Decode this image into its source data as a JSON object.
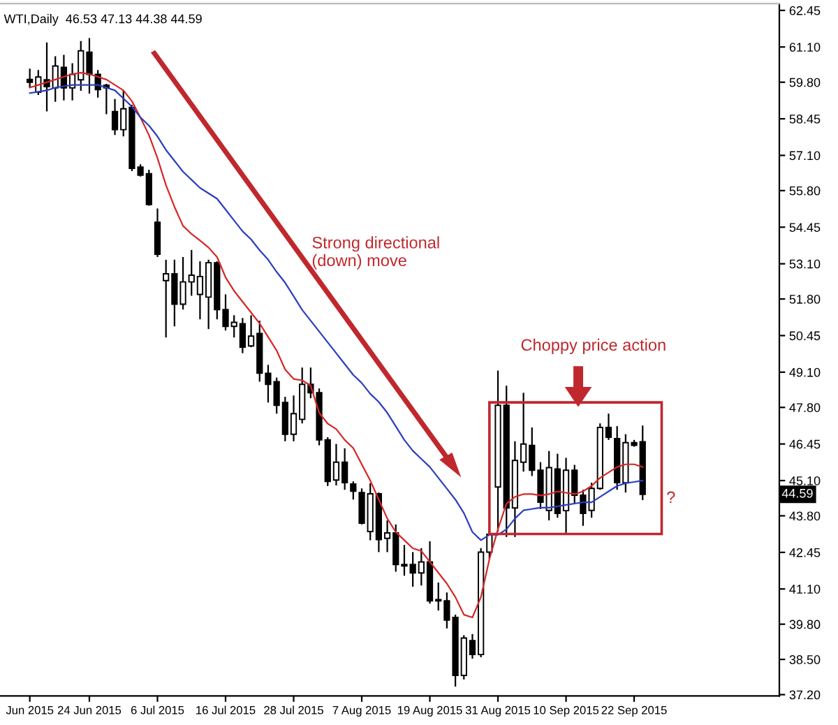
{
  "chart_data": {
    "type": "candlestick",
    "categories": [
      "Jun 2015",
      null,
      null,
      null,
      null,
      null,
      null,
      "24 Jun 2015",
      null,
      null,
      null,
      null,
      null,
      null,
      null,
      "6 Jul 2015",
      null,
      null,
      null,
      null,
      null,
      null,
      null,
      "16 Jul 2015",
      null,
      null,
      null,
      null,
      null,
      null,
      null,
      "28 Jul 2015",
      null,
      null,
      null,
      null,
      null,
      null,
      null,
      "7 Aug 2015",
      null,
      null,
      null,
      null,
      null,
      null,
      null,
      "19 Aug 2015",
      null,
      null,
      null,
      null,
      null,
      null,
      null,
      "31 Aug 2015",
      null,
      null,
      null,
      null,
      null,
      null,
      null,
      "10 Sep 2015",
      null,
      null,
      null,
      null,
      null,
      null,
      null,
      "22 Sep 2015",
      null
    ],
    "ohlc": [
      [
        59.9,
        60.3,
        59.6,
        59.8
      ],
      [
        59.43,
        60.25,
        59.33,
        59.99
      ],
      [
        59.89,
        61.27,
        58.72,
        59.64
      ],
      [
        59.59,
        60.76,
        59.08,
        60.4
      ],
      [
        60.35,
        60.81,
        59.13,
        59.59
      ],
      [
        59.59,
        60.5,
        59.13,
        60.09
      ],
      [
        59.89,
        61.32,
        59.48,
        60.96
      ],
      [
        60.91,
        61.43,
        59.38,
        60.09
      ],
      [
        60.09,
        60.25,
        59.23,
        59.53
      ],
      [
        59.69,
        59.74,
        58.62,
        59.59
      ],
      [
        58.72,
        59.18,
        57.85,
        58.05
      ],
      [
        58.05,
        59.48,
        57.8,
        58.82
      ],
      [
        58.87,
        58.97,
        56.52,
        56.62
      ],
      [
        56.67,
        56.77,
        56.32,
        56.37
      ],
      [
        56.42,
        56.57,
        55.24,
        55.29
      ],
      [
        54.63,
        55.14,
        53.35,
        53.45
      ],
      [
        52.48,
        53.25,
        50.38,
        52.73
      ],
      [
        52.73,
        53.25,
        50.79,
        51.61
      ],
      [
        51.61,
        53.35,
        51.41,
        52.43
      ],
      [
        52.43,
        53.61,
        51.92,
        52.68
      ],
      [
        51.97,
        53.19,
        51.05,
        52.63
      ],
      [
        51.87,
        53.25,
        50.69,
        53.14
      ],
      [
        53.14,
        53.19,
        51.05,
        51.41
      ],
      [
        51.41,
        51.97,
        50.64,
        50.79
      ],
      [
        50.79,
        51.2,
        50.38,
        50.94
      ],
      [
        50.89,
        51.1,
        49.8,
        50.02
      ],
      [
        50.07,
        51.2,
        50.02,
        50.43
      ],
      [
        50.53,
        51.0,
        48.75,
        49.06
      ],
      [
        49.06,
        49.37,
        47.98,
        48.65
      ],
      [
        48.75,
        48.9,
        47.57,
        47.88
      ],
      [
        47.98,
        48.19,
        46.55,
        46.81
      ],
      [
        46.81,
        48.24,
        46.55,
        47.57
      ],
      [
        47.36,
        49.27,
        47.21,
        48.65
      ],
      [
        48.65,
        49.27,
        48.14,
        48.34
      ],
      [
        48.34,
        48.5,
        46.4,
        46.6
      ],
      [
        46.6,
        46.7,
        44.9,
        45.07
      ],
      [
        45.12,
        46.45,
        44.92,
        45.78
      ],
      [
        45.78,
        46.29,
        44.76,
        45.02
      ],
      [
        44.97,
        45.07,
        44.4,
        44.71
      ],
      [
        44.66,
        44.81,
        43.48,
        43.53
      ],
      [
        43.22,
        45.0,
        42.9,
        44.61
      ],
      [
        44.61,
        44.66,
        42.46,
        42.92
      ],
      [
        42.97,
        43.63,
        42.46,
        43.17
      ],
      [
        43.17,
        43.48,
        41.74,
        42.0
      ],
      [
        42.0,
        42.72,
        41.59,
        41.95
      ],
      [
        42.0,
        42.46,
        41.18,
        41.69
      ],
      [
        41.69,
        42.61,
        41.23,
        42.1
      ],
      [
        42.1,
        42.86,
        40.56,
        40.66
      ],
      [
        40.71,
        41.34,
        40.31,
        40.66
      ],
      [
        40.66,
        40.97,
        39.64,
        39.95
      ],
      [
        40.05,
        40.15,
        37.5,
        37.91
      ],
      [
        37.91,
        39.39,
        37.76,
        39.29
      ],
      [
        39.19,
        39.44,
        38.53,
        38.68
      ],
      [
        38.68,
        42.61,
        38.58,
        42.46
      ],
      [
        42.46,
        43.3,
        42.2,
        43.12
      ],
      [
        44.86,
        49.16,
        43.22,
        47.88
      ],
      [
        47.88,
        48.6,
        43.02,
        44.09
      ],
      [
        44.09,
        46.55,
        43.02,
        45.84
      ],
      [
        45.78,
        48.34,
        45.43,
        46.45
      ],
      [
        46.4,
        47.06,
        45.27,
        45.48
      ],
      [
        45.48,
        45.78,
        44.05,
        44.3
      ],
      [
        44.0,
        46.19,
        43.63,
        45.58
      ],
      [
        45.53,
        46.09,
        43.73,
        43.89
      ],
      [
        43.99,
        45.94,
        43.17,
        45.48
      ],
      [
        45.48,
        45.68,
        44.25,
        44.56
      ],
      [
        44.56,
        44.76,
        43.43,
        43.89
      ],
      [
        44.0,
        45.02,
        43.73,
        44.81
      ],
      [
        44.81,
        47.21,
        44.76,
        47.06
      ],
      [
        47.06,
        47.57,
        46.6,
        46.7
      ],
      [
        46.65,
        47.11,
        44.76,
        45.02
      ],
      [
        45.02,
        46.81,
        44.66,
        46.5
      ],
      [
        46.5,
        46.6,
        46.35,
        46.4
      ],
      [
        46.53,
        47.13,
        44.38,
        44.59
      ]
    ],
    "series": [
      {
        "type": "line",
        "color": "#d62728",
        "values": [
          59.6,
          59.7,
          59.8,
          59.9,
          60.0,
          60.1,
          60.15,
          60.1,
          60.0,
          59.9,
          59.7,
          59.5,
          59.1,
          58.5,
          57.85,
          57.0,
          56.0,
          55.2,
          54.5,
          54.2,
          53.96,
          53.7,
          53.35,
          52.6,
          52.1,
          51.7,
          51.3,
          50.9,
          50.4,
          49.9,
          49.2,
          48.85,
          48.8,
          48.6,
          47.6,
          47.2,
          47.0,
          46.6,
          46.3,
          45.7,
          45.1,
          44.4,
          43.7,
          43.2,
          42.9,
          42.6,
          42.5,
          42.1,
          41.7,
          41.3,
          40.8,
          40.15,
          40.05,
          40.8,
          42.2,
          43.3,
          44.25,
          44.5,
          44.6,
          44.6,
          44.55,
          44.6,
          44.7,
          44.65,
          44.6,
          44.7,
          44.9,
          45.2,
          45.4,
          45.6,
          45.7,
          45.7,
          45.6
        ]
      },
      {
        "type": "line",
        "color": "#2b3fbf",
        "values": [
          59.4,
          59.45,
          59.5,
          59.6,
          59.65,
          59.7,
          59.7,
          59.7,
          59.7,
          59.6,
          59.5,
          59.2,
          58.9,
          58.5,
          58.2,
          57.8,
          57.3,
          56.9,
          56.5,
          56.2,
          55.9,
          55.7,
          55.5,
          55.1,
          54.7,
          54.3,
          54.0,
          53.6,
          53.25,
          52.8,
          52.4,
          51.9,
          51.4,
          51.0,
          50.6,
          50.2,
          49.8,
          49.4,
          49.0,
          48.7,
          48.3,
          48.0,
          47.6,
          47.1,
          46.6,
          46.2,
          45.9,
          45.6,
          45.2,
          44.8,
          44.4,
          43.9,
          43.2,
          42.9,
          43.1,
          43.1,
          43.3,
          43.7,
          44.0,
          44.05,
          44.1,
          44.1,
          44.15,
          44.2,
          44.25,
          44.3,
          44.3,
          44.5,
          44.7,
          44.9,
          45.0,
          45.05,
          45.1
        ]
      }
    ],
    "ylim": [
      37.15,
      62.7
    ],
    "yticks": [
      {
        "value": 62.45,
        "label": "62.45"
      },
      {
        "value": 61.1,
        "label": "61.10"
      },
      {
        "value": 59.8,
        "label": "59.80"
      },
      {
        "value": 58.45,
        "label": "58.45"
      },
      {
        "value": 57.1,
        "label": "57.10"
      },
      {
        "value": 55.8,
        "label": "55.80"
      },
      {
        "value": 54.45,
        "label": "54.45"
      },
      {
        "value": 53.1,
        "label": "53.10"
      },
      {
        "value": 51.8,
        "label": "51.80"
      },
      {
        "value": 50.45,
        "label": "50.45"
      },
      {
        "value": 49.1,
        "label": "49.10"
      },
      {
        "value": 47.8,
        "label": "47.80"
      },
      {
        "value": 46.45,
        "label": "46.45"
      },
      {
        "value": 45.1,
        "label": "45.10"
      },
      {
        "value": 43.8,
        "label": "43.80"
      },
      {
        "value": 42.45,
        "label": "42.45"
      },
      {
        "value": 41.1,
        "label": "41.10"
      },
      {
        "value": 39.8,
        "label": "39.80"
      },
      {
        "value": 38.5,
        "label": "38.50"
      },
      {
        "value": 37.2,
        "label": "37.20"
      }
    ],
    "grid": false,
    "annotations": [
      "WTI,Daily  46.53 47.13 44.38 44.59",
      "Strong directional\n(down) move",
      "Choppy price action",
      "?",
      "44.59"
    ]
  }
}
